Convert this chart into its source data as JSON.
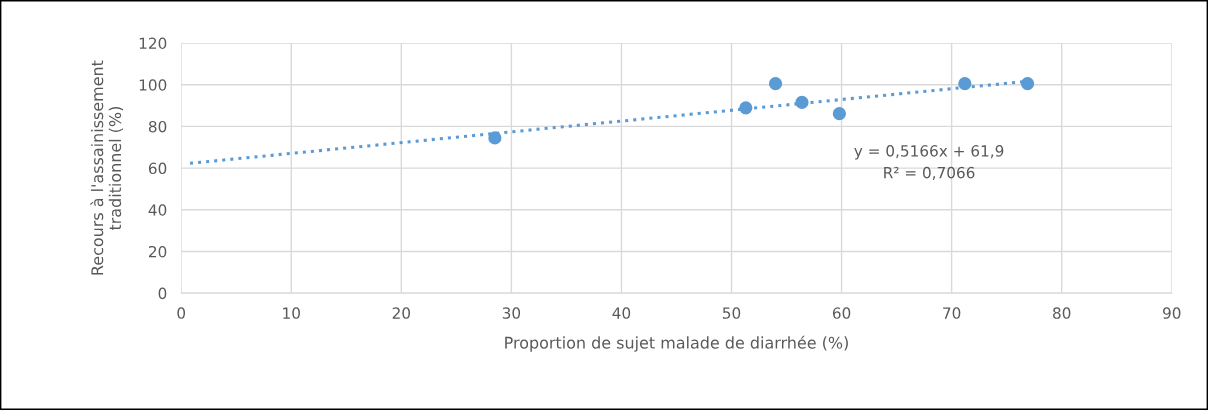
{
  "chart_data": {
    "type": "scatter",
    "xlabel": "Proportion de sujet malade de diarrhée (%)",
    "ylabel": "Recours à l'assainissement\ntraditionnel (%)",
    "xlim": [
      0,
      90
    ],
    "xticks": [
      0,
      10,
      20,
      30,
      40,
      50,
      60,
      70,
      80,
      90
    ],
    "ylim": [
      0,
      120
    ],
    "yticks": [
      0,
      20,
      40,
      60,
      80,
      100,
      120
    ],
    "grid": true,
    "marker": "circle",
    "series": [
      {
        "color": "#5b9bd5",
        "x": [
          28.5,
          51.3,
          54.0,
          56.4,
          59.8,
          71.2,
          76.9
        ],
        "values": [
          74.5,
          88.9,
          100.5,
          91.5,
          86.1,
          100.5,
          100.5
        ]
      },
      {
        "type": "line",
        "color": "#5b9bd5",
        "line_style": "dotted",
        "marker": "none",
        "x": [
          0.8,
          77
        ],
        "values": [
          62.3,
          101.7
        ]
      }
    ],
    "annotations": [
      "y = 0,5166x + 61,9\nR² = 0,7066"
    ]
  }
}
